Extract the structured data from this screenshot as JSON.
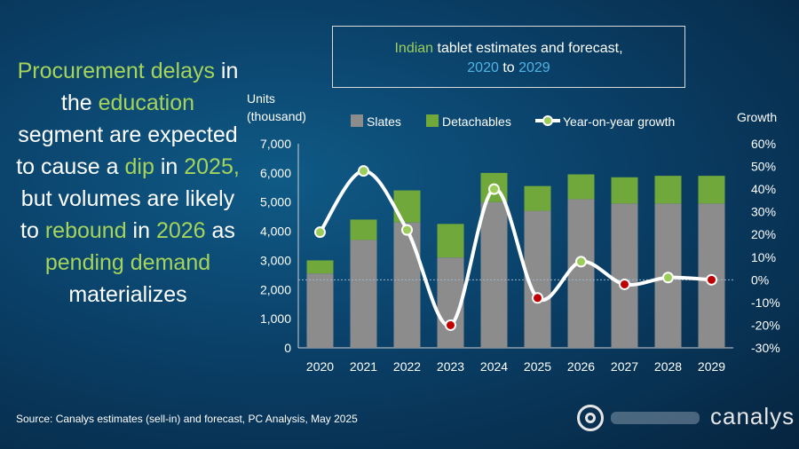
{
  "headline": {
    "parts": [
      {
        "text": "Procurement",
        "green": true
      },
      {
        "text": " ",
        "green": false
      },
      {
        "text": "delays",
        "green": true
      },
      {
        "text": " in the ",
        "green": false
      },
      {
        "text": "education",
        "green": true
      },
      {
        "text": " segment are expected to cause a ",
        "green": false
      },
      {
        "text": "dip",
        "green": true
      },
      {
        "text": " in ",
        "green": false
      },
      {
        "text": "2025,",
        "green": true
      },
      {
        "text": " but volumes are likely to ",
        "green": false
      },
      {
        "text": "rebound",
        "green": true
      },
      {
        "text": " in ",
        "green": false
      },
      {
        "text": "2026",
        "green": true
      },
      {
        "text": " as ",
        "green": false
      },
      {
        "text": "pending demand",
        "green": true
      },
      {
        "text": " materializes",
        "green": false
      }
    ]
  },
  "title_box": {
    "w1": "Indian",
    "w2": " tablet estimates and forecast,",
    "w3": "2020",
    "w4": " to ",
    "w5": "2029"
  },
  "source": "Source: Canalys estimates (sell-in) and forecast, PC Analysis, May 2025",
  "logo": {
    "text": "canalys",
    "icon": "canalys-logo-icon"
  },
  "colors": {
    "slates": "#8c8c8c",
    "detachables": "#70a83b",
    "line": "#ffffff",
    "marker_positive": "#9ccc5a",
    "marker_negative": "#c00000",
    "grid": "#9fb3c8"
  },
  "chart_data": {
    "type": "bar",
    "stacked": true,
    "categories": [
      "2020",
      "2021",
      "2022",
      "2023",
      "2024",
      "2025",
      "2026",
      "2027",
      "2028",
      "2029"
    ],
    "series": [
      {
        "name": "Slates",
        "values": [
          2550,
          3700,
          4300,
          3100,
          5000,
          4700,
          5100,
          4950,
          4950,
          4950
        ]
      },
      {
        "name": "Detachables",
        "values": [
          450,
          700,
          1100,
          1150,
          1000,
          850,
          850,
          900,
          950,
          950
        ]
      }
    ],
    "line_series": {
      "name": "Year-on-year growth",
      "values": [
        21,
        48,
        22,
        -20,
        40,
        -8,
        8,
        -2,
        1,
        0
      ]
    },
    "ylabel": "Units\n(thousand)",
    "ylabel_lines": [
      "Units",
      "(thousand)"
    ],
    "y2label": "Growth",
    "ylim": [
      0,
      7000
    ],
    "y_ticks": [
      "0",
      "1,000",
      "2,000",
      "3,000",
      "4,000",
      "5,000",
      "6,000",
      "7,000"
    ],
    "y2lim": [
      -30,
      60
    ],
    "y2_ticks": [
      "-30%",
      "-20%",
      "-10%",
      "0%",
      "10%",
      "20%",
      "30%",
      "40%",
      "50%",
      "60%"
    ],
    "legend": [
      "Slates",
      "Detachables",
      "Year-on-year growth"
    ],
    "legend_position": "top",
    "zero_line_right_axis": true
  }
}
